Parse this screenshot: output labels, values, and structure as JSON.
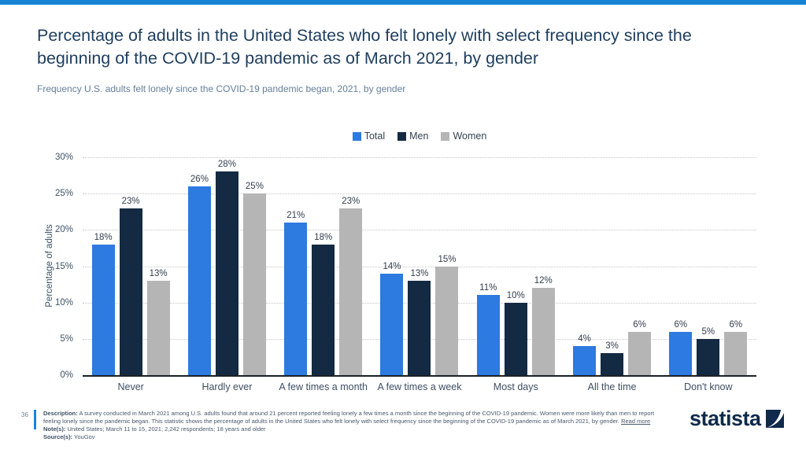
{
  "page": {
    "accent_color": "#1884d8"
  },
  "header": {
    "title": "Percentage of adults in the United States who felt lonely with select frequency since the beginning of the COVID-19 pandemic as of March 2021, by gender",
    "subtitle": "Frequency U.S. adults felt lonely since the COVID-19 pandemic began, 2021, by gender"
  },
  "chart_data": {
    "type": "bar",
    "title": "Frequency U.S. adults felt lonely since the COVID-19 pandemic began, 2021, by gender",
    "categories": [
      "Never",
      "Hardly ever",
      "A few times a month",
      "A few times a week",
      "Most days",
      "All the time",
      "Don't know"
    ],
    "series": [
      {
        "name": "Total",
        "color": "#2d7ae0",
        "values": [
          18,
          26,
          21,
          14,
          11,
          4,
          6
        ]
      },
      {
        "name": "Men",
        "color": "#132a42",
        "values": [
          23,
          28,
          18,
          13,
          10,
          3,
          5
        ]
      },
      {
        "name": "Women",
        "color": "#b5b5b5",
        "values": [
          13,
          25,
          23,
          15,
          12,
          6,
          6
        ]
      }
    ],
    "xlabel": "",
    "ylabel": "Percentage of adults",
    "ylim": [
      0,
      30
    ],
    "ytick_step": 5,
    "value_suffix": "%",
    "grid": "horizontal-dotted",
    "legend_position": "top-center",
    "data_labels": true
  },
  "footer": {
    "page_number": "36",
    "description_label": "Description:",
    "description": "A survey conducted in March 2021 among U.S. adults found that around 21 percent reported feeling lonely a few times a month since the beginning of the COVID-19 pandemic. Women were more likely than men to report feeling lonely since the pandemic began. This statistic shows the percentage of adults in the United States who felt lonely with select frequency since the beginning of the COVID-19 pandemic as of March 2021, by gender.",
    "read_more": "Read more",
    "notes_label": "Note(s):",
    "notes": "United States; March 11 to 15, 2021; 2,242 respondents; 18 years and older",
    "source_label": "Source(s):",
    "source": "YouGov"
  },
  "logo": {
    "text": "statista",
    "color": "#0f2a4a"
  }
}
